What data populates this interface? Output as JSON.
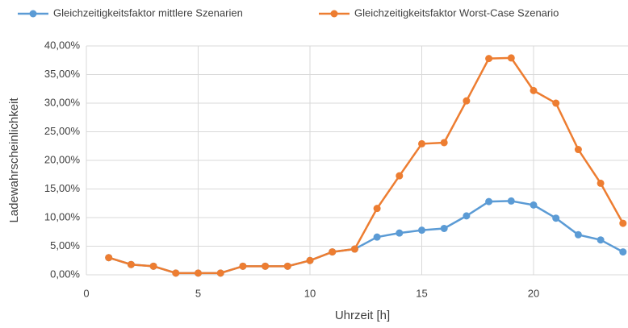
{
  "chart_data": {
    "type": "line",
    "x_label": "Uhrzeit [h]",
    "y_label": "Ladewahrscheinlichkeit",
    "x": [
      1,
      2,
      3,
      4,
      5,
      6,
      7,
      8,
      9,
      10,
      11,
      12,
      13,
      14,
      15,
      16,
      17,
      18,
      19,
      20,
      21,
      22,
      23,
      24
    ],
    "series": [
      {
        "name": "Gleichzeitigkeitsfaktor mittlere Szenarien",
        "color": "#5b9bd5",
        "values": [
          3.0,
          1.8,
          1.5,
          0.3,
          0.3,
          0.3,
          1.5,
          1.5,
          1.5,
          2.5,
          4.0,
          4.5,
          6.6,
          7.3,
          7.8,
          8.1,
          10.3,
          12.8,
          12.9,
          12.2,
          9.9,
          7.0,
          6.1,
          4.0
        ]
      },
      {
        "name": "Gleichzeitigkeitsfaktor Worst-Case Szenario",
        "color": "#ed7d31",
        "values": [
          3.0,
          1.8,
          1.5,
          0.3,
          0.3,
          0.3,
          1.5,
          1.5,
          1.5,
          2.5,
          4.0,
          4.5,
          11.6,
          17.3,
          22.9,
          23.1,
          30.4,
          37.8,
          37.9,
          32.2,
          30.0,
          21.9,
          16.0,
          9.0
        ]
      }
    ],
    "xlim": [
      0,
      25
    ],
    "xticks": [
      0,
      5,
      10,
      15,
      20
    ],
    "ylim": [
      0,
      40
    ],
    "yticks": [
      {
        "value": 0,
        "label": "0,00%"
      },
      {
        "value": 5,
        "label": "5,00%"
      },
      {
        "value": 10,
        "label": "10,00%"
      },
      {
        "value": 15,
        "label": "15,00%"
      },
      {
        "value": 20,
        "label": "20,00%"
      },
      {
        "value": 25,
        "label": "25,00%"
      },
      {
        "value": 30,
        "label": "30,00%"
      },
      {
        "value": 35,
        "label": "35,00%"
      },
      {
        "value": 40,
        "label": "40,00%"
      }
    ],
    "grid": true
  }
}
